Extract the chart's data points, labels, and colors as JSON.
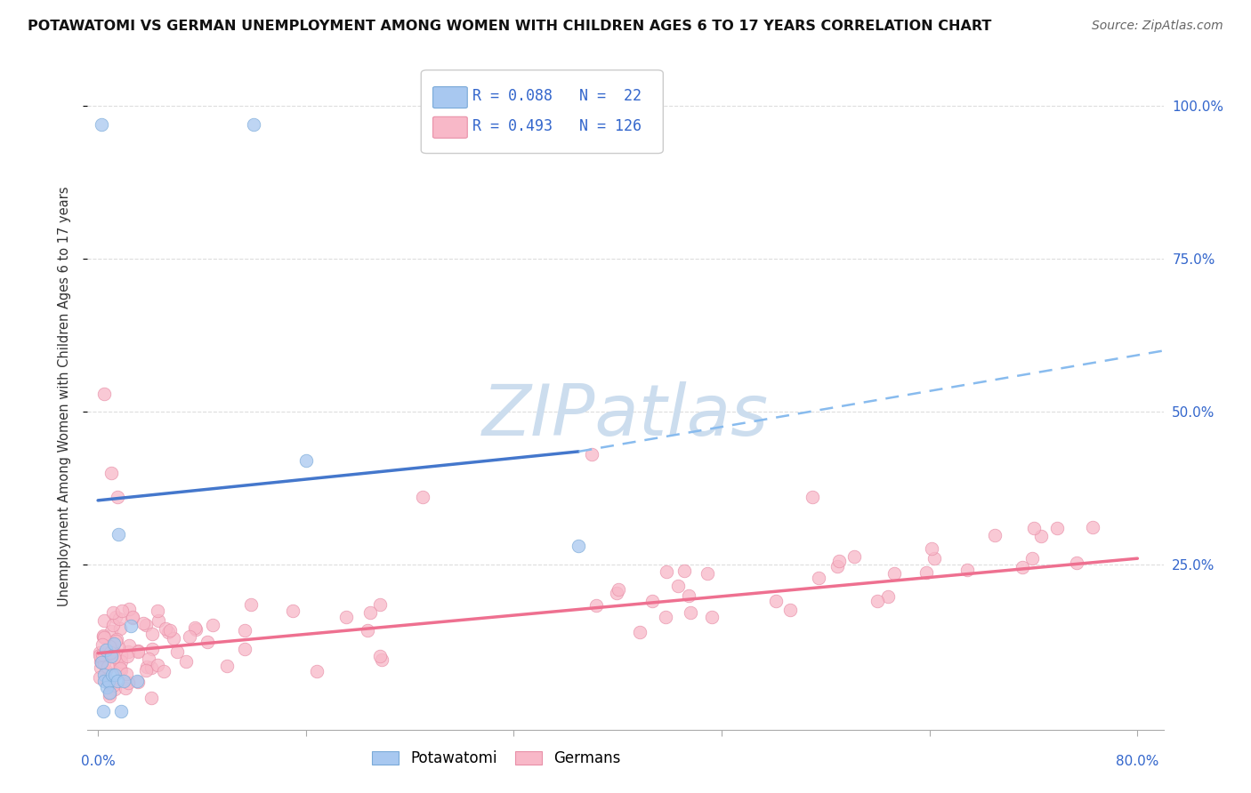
{
  "title": "POTAWATOMI VS GERMAN UNEMPLOYMENT AMONG WOMEN WITH CHILDREN AGES 6 TO 17 YEARS CORRELATION CHART",
  "source": "Source: ZipAtlas.com",
  "ylabel": "Unemployment Among Women with Children Ages 6 to 17 years",
  "legend_r_potawatomi": "R = 0.088",
  "legend_n_potawatomi": "N =  22",
  "legend_r_german": "R = 0.493",
  "legend_n_german": "N = 126",
  "potawatomi_color": "#A8C8F0",
  "potawatomi_edge_color": "#7AAAD8",
  "german_color": "#F8B8C8",
  "german_edge_color": "#E890A8",
  "trend_potawatomi_solid_color": "#4477CC",
  "trend_potawatomi_dash_color": "#88BBEE",
  "trend_german_color": "#EE7090",
  "background_color": "#FFFFFF",
  "grid_color": "#DDDDDD",
  "watermark_color": "#CCDDEE",
  "xlim_min": -0.008,
  "xlim_max": 0.82,
  "ylim_min": -0.02,
  "ylim_max": 1.07,
  "pot_trend_x0": 0.0,
  "pot_trend_y0": 0.355,
  "pot_trend_x1": 0.37,
  "pot_trend_y1": 0.435,
  "pot_trend_xend": 0.82,
  "pot_trend_yend": 0.6,
  "ger_trend_x0": 0.0,
  "ger_trend_y0": 0.105,
  "ger_trend_x1": 0.8,
  "ger_trend_y1": 0.26
}
